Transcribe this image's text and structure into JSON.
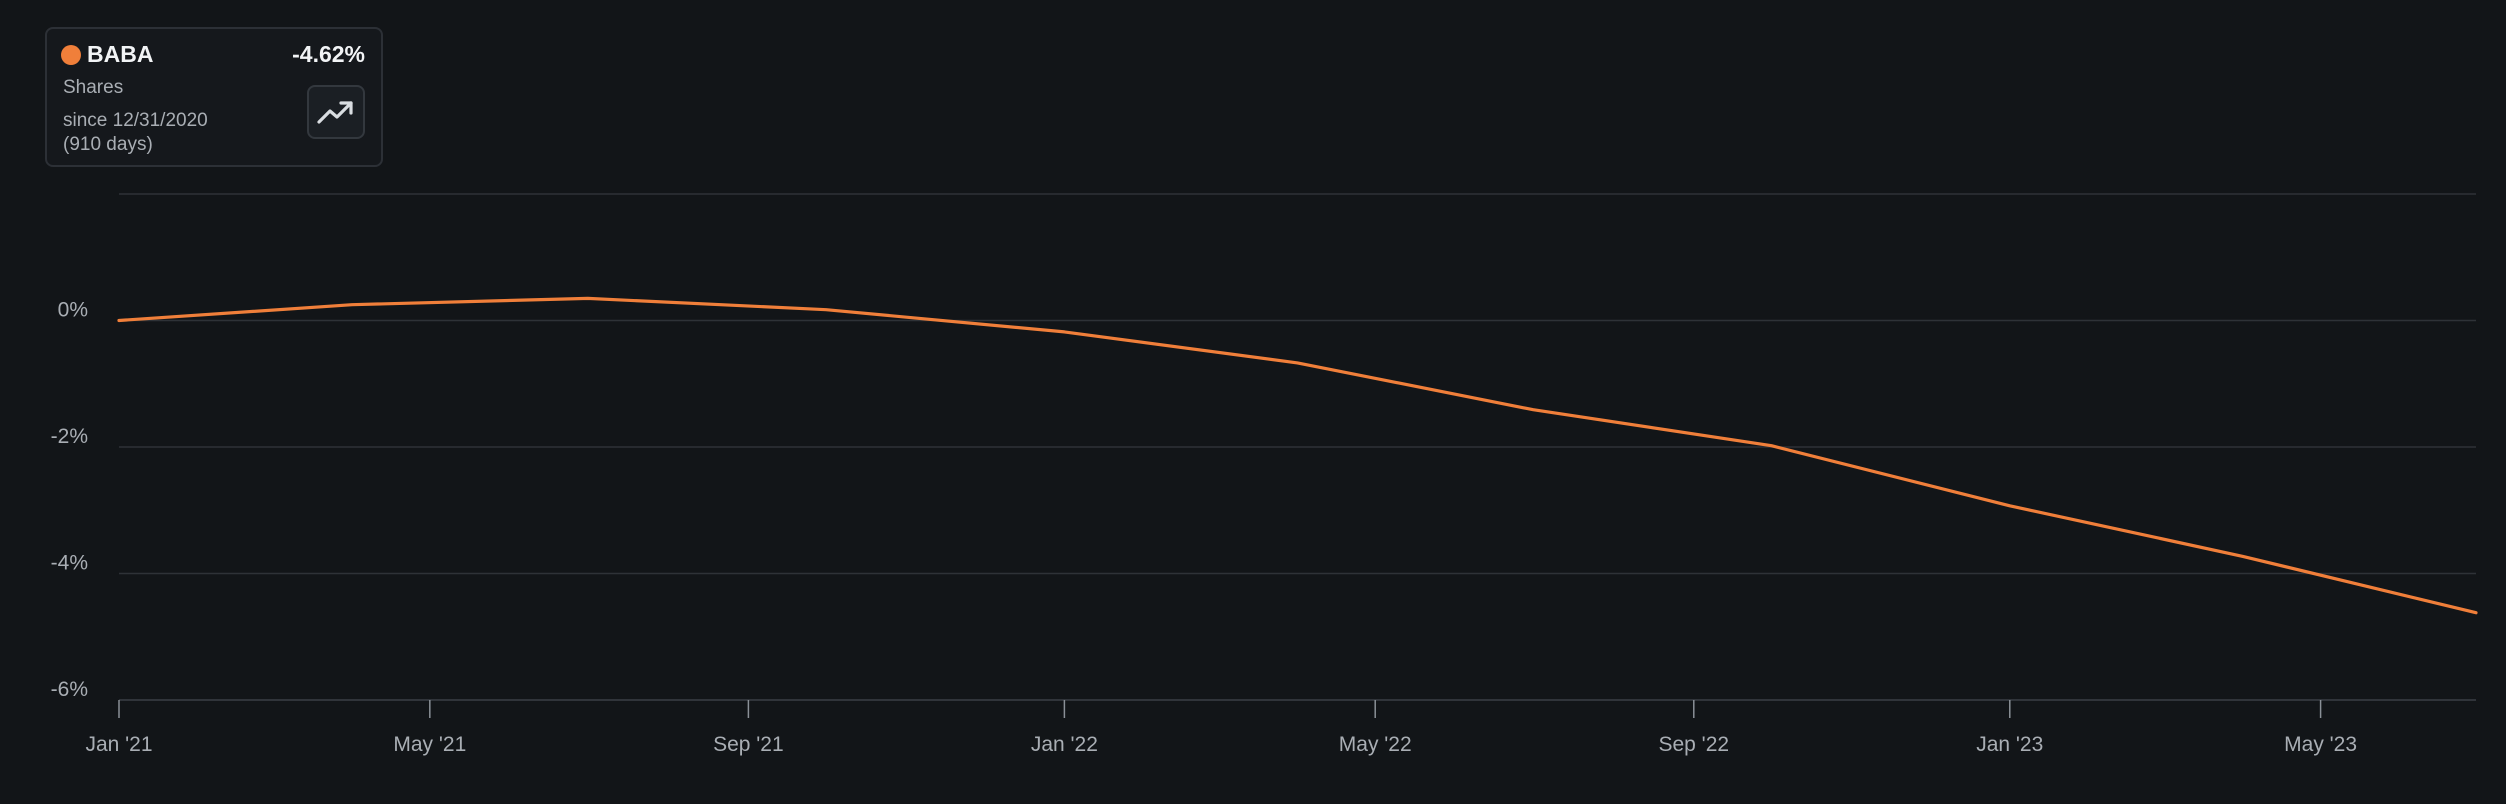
{
  "legend": {
    "ticker": "BABA",
    "change": "-4.62%",
    "subtitle": "Shares",
    "since_line1": "since 12/31/2020",
    "since_line2": "(910 days)",
    "button_icon": "trending-up-icon"
  },
  "colors": {
    "series": "#f07f3a",
    "background": "#121518",
    "grid": "#2e3237"
  },
  "chart_data": {
    "type": "line",
    "title": "",
    "xlabel": "",
    "ylabel": "",
    "grid": true,
    "ylim": [
      -6,
      2
    ],
    "xlim": [
      "2021-01-01",
      "2023-06-30"
    ],
    "y_ticks": [
      0,
      -2,
      -4,
      -6
    ],
    "y_tick_labels": [
      "0%",
      "-2%",
      "-4%",
      "-6%"
    ],
    "x_ticks": [
      "2021-01-01",
      "2021-05-01",
      "2021-09-01",
      "2022-01-01",
      "2022-05-01",
      "2022-09-01",
      "2023-01-01",
      "2023-05-01"
    ],
    "x_tick_labels": [
      "Jan '21",
      "May '21",
      "Sep '21",
      "Jan '22",
      "May '22",
      "Sep '22",
      "Jan '23",
      "May '23"
    ],
    "series": [
      {
        "name": "BABA",
        "x": [
          "2021-01-01",
          "2021-04-01",
          "2021-07-01",
          "2021-10-01",
          "2022-01-01",
          "2022-04-01",
          "2022-07-01",
          "2022-10-01",
          "2023-01-01",
          "2023-04-01",
          "2023-06-30"
        ],
        "y": [
          0.0,
          0.25,
          0.35,
          0.17,
          -0.18,
          -0.67,
          -1.41,
          -1.98,
          -2.93,
          -3.73,
          -4.62
        ]
      }
    ]
  }
}
